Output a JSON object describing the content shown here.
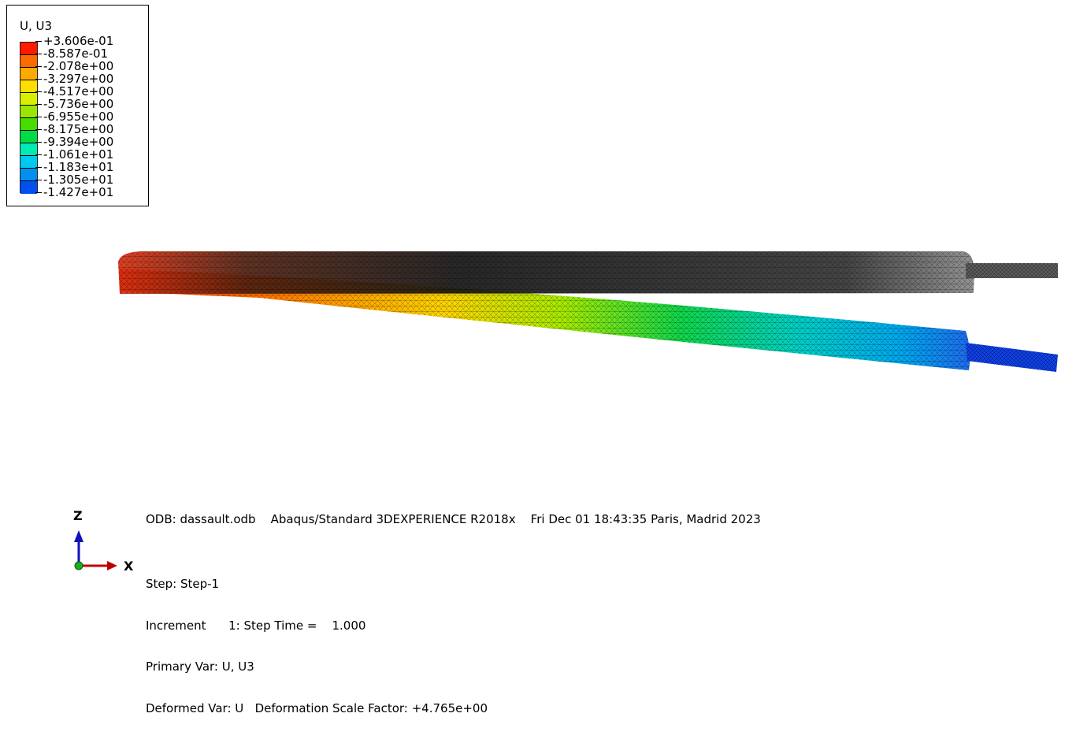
{
  "legend": {
    "title": "U, U3",
    "labels": [
      "+3.606e-01",
      "-8.587e-01",
      "-2.078e+00",
      "-3.297e+00",
      "-4.517e+00",
      "-5.736e+00",
      "-6.955e+00",
      "-8.175e+00",
      "-9.394e+00",
      "-1.061e+01",
      "-1.183e+01",
      "-1.305e+01",
      "-1.427e+01"
    ],
    "colors": [
      "#ff1a00",
      "#ff6a00",
      "#ffaa00",
      "#ffdd00",
      "#d8f000",
      "#9ae600",
      "#46dc00",
      "#00dc46",
      "#00eab4",
      "#00c8f0",
      "#0090f0",
      "#0050f0",
      "#0010e0"
    ]
  },
  "odb_line": "ODB: dassault.odb    Abaqus/Standard 3DEXPERIENCE R2018x    Fri Dec 01 18:43:35 Paris, Madrid 2023",
  "step_info": [
    "Step: Step-1",
    "Increment      1: Step Time =    1.000",
    "Primary Var: U, U3",
    "Deformed Var: U   Deformation Scale Factor: +4.765e+00"
  ],
  "triad": {
    "z_label": "Z",
    "x_label": "X"
  }
}
